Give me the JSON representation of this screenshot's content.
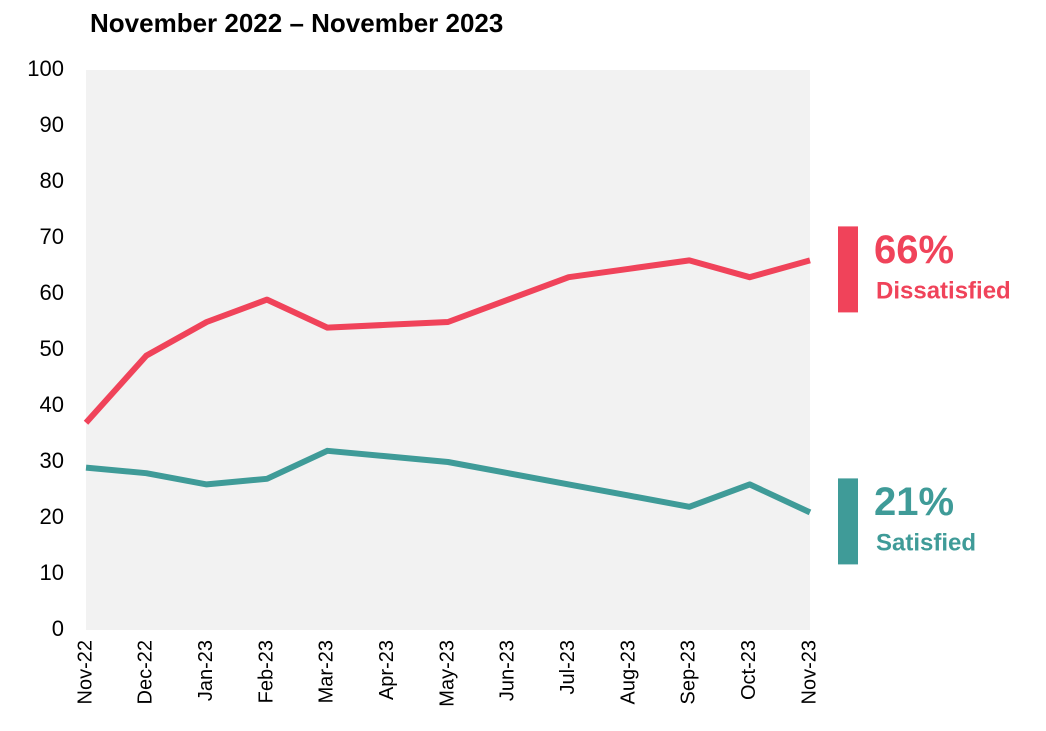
{
  "chart_data": {
    "type": "line",
    "title": "November 2022 – November 2023",
    "categories": [
      "Nov-22",
      "Dec-22",
      "Jan-23",
      "Feb-23",
      "Mar-23",
      "Apr-23",
      "May-23",
      "Jun-23",
      "Jul-23",
      "Aug-23",
      "Sep-23",
      "Oct-23",
      "Nov-23"
    ],
    "series": [
      {
        "name": "Dissatisfied",
        "color": "#f0435a",
        "end_label": "66%",
        "values": [
          37,
          49,
          55,
          59,
          54,
          54.5,
          55,
          59,
          63,
          64.5,
          66,
          63,
          66
        ]
      },
      {
        "name": "Satisfied",
        "color": "#3f9b98",
        "end_label": "21%",
        "values": [
          29,
          28,
          26,
          27,
          32,
          31,
          30,
          28,
          26,
          24,
          22,
          26,
          21
        ]
      }
    ],
    "ylim": [
      0,
      100
    ],
    "yticks": [
      0,
      10,
      20,
      30,
      40,
      50,
      60,
      70,
      80,
      90,
      100
    ],
    "grid": false,
    "plot_background": "#f2f2f2"
  }
}
